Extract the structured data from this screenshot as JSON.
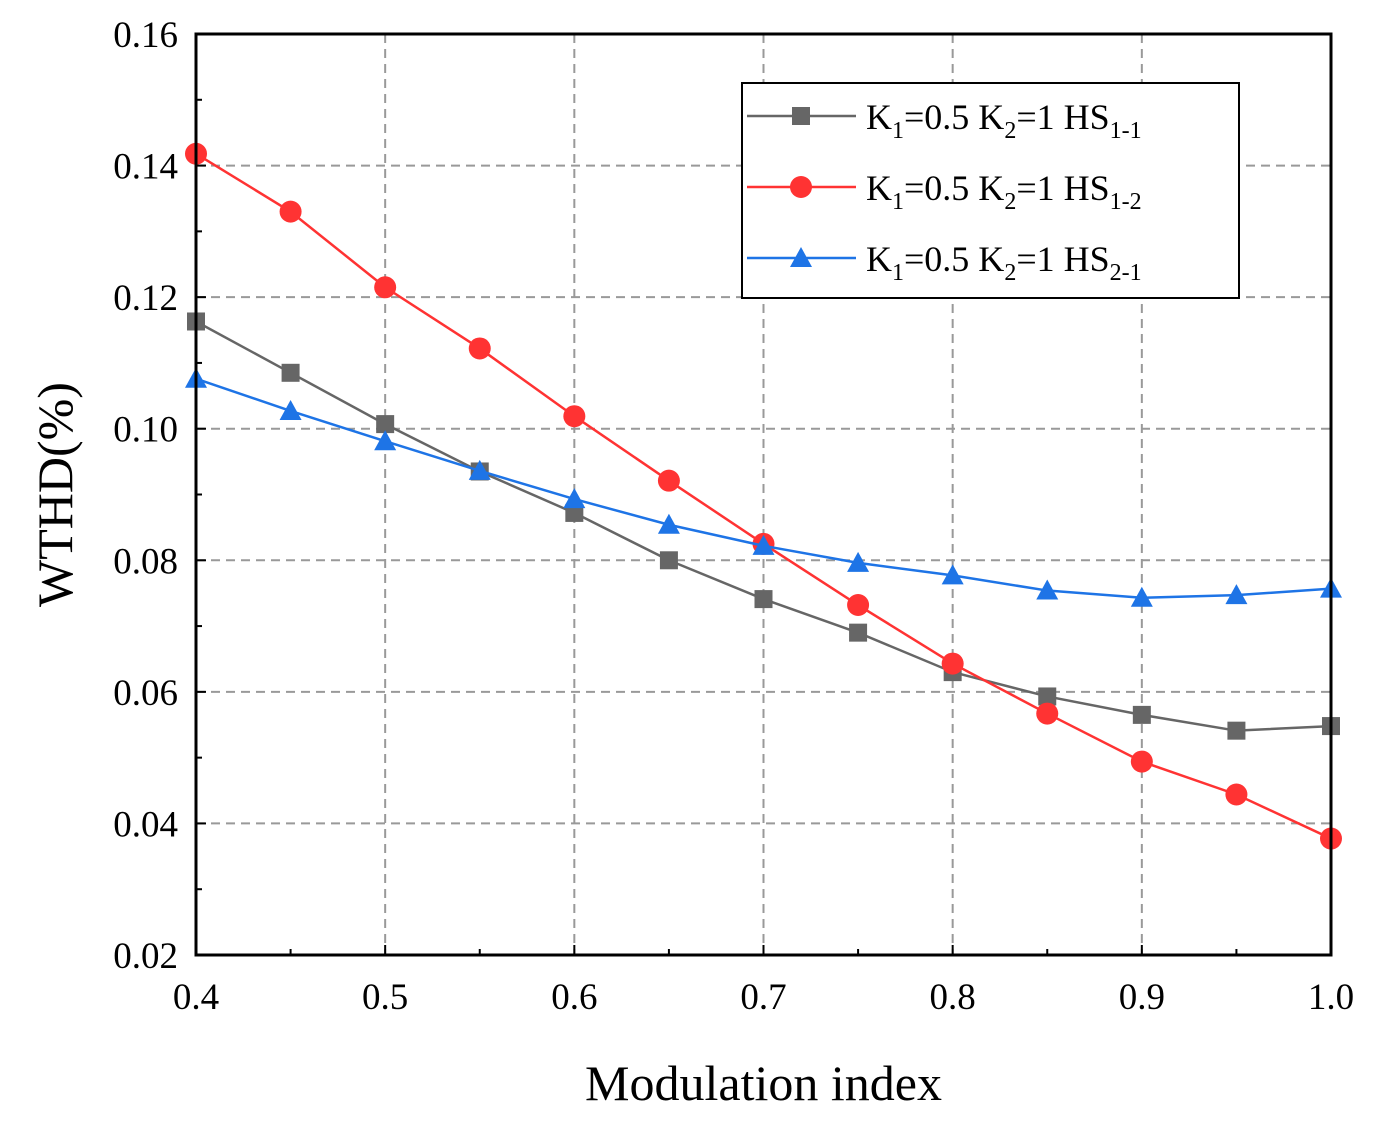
{
  "chart_data": {
    "type": "line",
    "title": "",
    "xlabel": "Modulation index",
    "ylabel": "WTHD(%)",
    "xlim": [
      0.4,
      1.0
    ],
    "ylim": [
      0.02,
      0.16
    ],
    "x_ticks": [
      "0.4",
      "0.5",
      "0.6",
      "0.7",
      "0.8",
      "0.9",
      "1.0"
    ],
    "y_ticks": [
      "0.02",
      "0.04",
      "0.06",
      "0.08",
      "0.10",
      "0.12",
      "0.14",
      "0.16"
    ],
    "grid": true,
    "legend_position": "top-right",
    "x": [
      0.4,
      0.45,
      0.5,
      0.55,
      0.6,
      0.65,
      0.7,
      0.75,
      0.8,
      0.85,
      0.9,
      0.95,
      1.0
    ],
    "series": [
      {
        "name": "K1=0.5 K2=1 HS1-1",
        "legend": {
          "k1_sub": "1",
          "k1_val": "=0.5 K",
          "k2_sub": "2",
          "k2_val": "=1 HS",
          "hs_sub": "1-1"
        },
        "color": "#666666",
        "marker": "square",
        "values": [
          0.1163,
          0.1085,
          0.1007,
          0.0935,
          0.0872,
          0.08,
          0.0741,
          0.069,
          0.063,
          0.0593,
          0.0565,
          0.0541,
          0.0548
        ]
      },
      {
        "name": "K1=0.5 K2=1 HS1-2",
        "legend": {
          "k1_sub": "1",
          "k1_val": "=0.5 K",
          "k2_sub": "2",
          "k2_val": "=1 HS",
          "hs_sub": "1-2"
        },
        "color": "#ff3333",
        "marker": "circle",
        "values": [
          0.1418,
          0.133,
          0.1215,
          0.1122,
          0.1019,
          0.0921,
          0.0825,
          0.0732,
          0.0643,
          0.0567,
          0.0494,
          0.0444,
          0.0377
        ]
      },
      {
        "name": "K1=0.5 K2=1 HS2-1",
        "legend": {
          "k1_sub": "1",
          "k1_val": "=0.5 K",
          "k2_sub": "2",
          "k2_val": "=1 HS",
          "hs_sub": "2-1"
        },
        "color": "#1e74e6",
        "marker": "triangle",
        "values": [
          0.1076,
          0.1027,
          0.0981,
          0.0936,
          0.0893,
          0.0854,
          0.0822,
          0.0796,
          0.0777,
          0.0754,
          0.0743,
          0.0747,
          0.0757
        ]
      }
    ]
  }
}
